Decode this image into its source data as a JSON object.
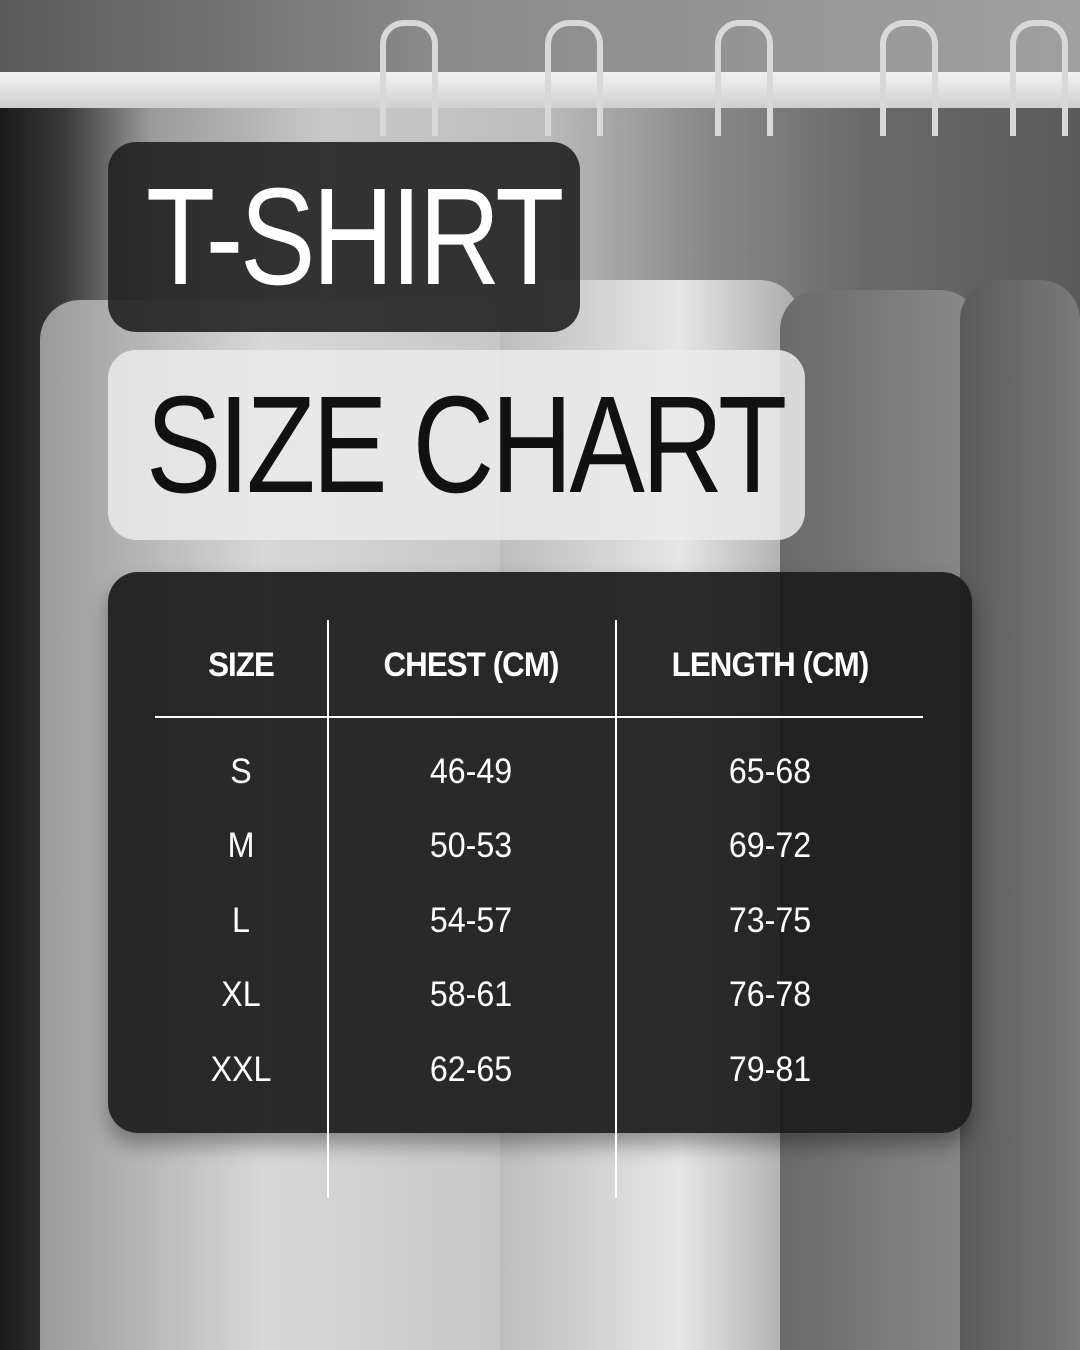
{
  "title": {
    "line1": "T-SHIRT",
    "line2": "SIZE CHART"
  },
  "table": {
    "headers": [
      "SIZE",
      "CHEST (CM)",
      "LENGTH (CM)"
    ],
    "rows": [
      [
        "S",
        "46-49",
        "65-68"
      ],
      [
        "M",
        "50-53",
        "69-72"
      ],
      [
        "L",
        "54-57",
        "73-75"
      ],
      [
        "XL",
        "58-61",
        "76-78"
      ],
      [
        "XXL",
        "62-65",
        "79-81"
      ]
    ]
  },
  "colors": {
    "dark_panel": "#1c1c1c",
    "light_panel": "#ebebeb",
    "text_light": "#ffffff",
    "text_dark": "#111111"
  }
}
